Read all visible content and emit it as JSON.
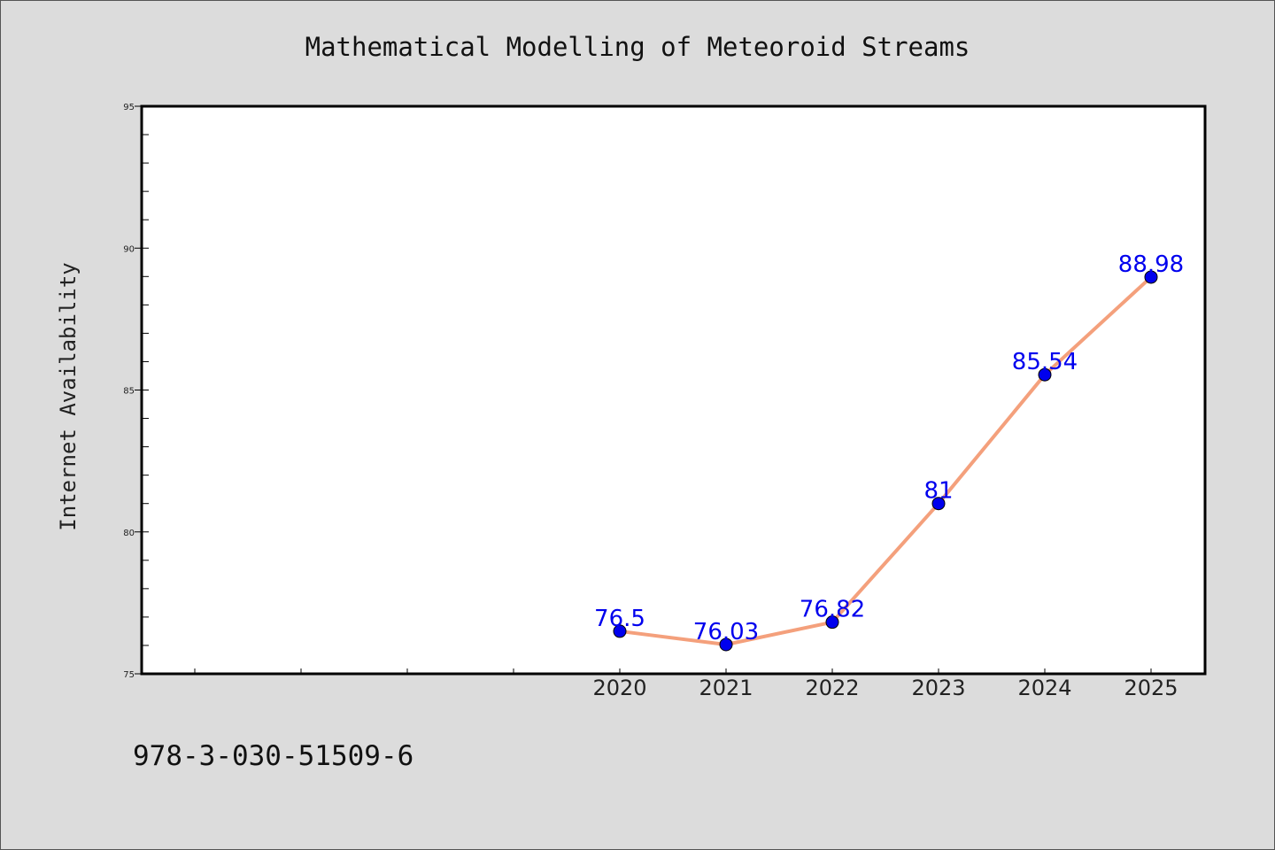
{
  "chart_data": {
    "type": "line",
    "title": "Mathematical Modelling of Meteoroid Streams",
    "xlabel": "",
    "ylabel": "Internet Availability",
    "categories": [
      "",
      "",
      "",
      "",
      "2020",
      "2021",
      "2022",
      "2023",
      "2024",
      "2025"
    ],
    "series": [
      {
        "values": [
          null,
          null,
          null,
          null,
          76.5,
          76.03,
          76.82,
          81,
          85.54,
          88.98
        ],
        "labels": [
          "",
          "",
          "",
          "",
          "76.5",
          "76.03",
          "76.82",
          "81",
          "85.54",
          "88.98"
        ],
        "line_color": "#f4a07c",
        "marker_color": "#0000ee"
      }
    ],
    "ylim": [
      75,
      95
    ],
    "yticks": [
      75,
      80,
      85,
      90,
      95
    ],
    "ytick_labels": [
      "75",
      "80",
      "85",
      "90",
      "95"
    ],
    "grid": false,
    "legend": "none"
  },
  "footer": {
    "isbn": "978-3-030-51509-6"
  },
  "colors": {
    "background": "#dcdcdc",
    "plot_background": "#ffffff",
    "axis": "#000000"
  }
}
